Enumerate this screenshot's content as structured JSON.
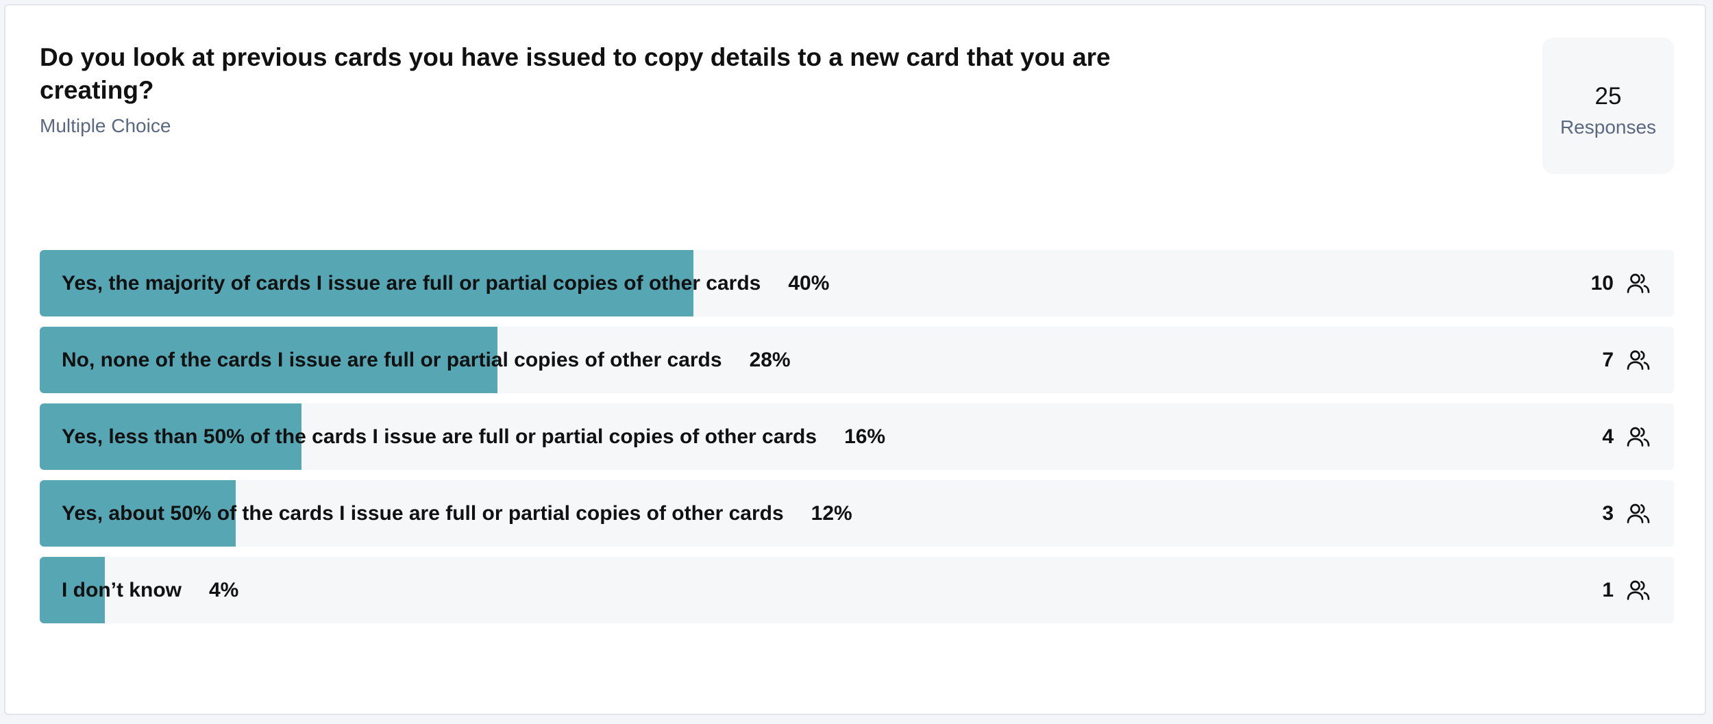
{
  "question": {
    "title": "Do you look at previous cards you have issued to copy details to a new card that you are creating?",
    "type_label": "Multiple Choice"
  },
  "summary": {
    "count": 25,
    "label": "Responses"
  },
  "options": [
    {
      "label": "Yes, the majority of cards I issue are full or partial copies of other cards",
      "percent": 40,
      "percent_label": "40%",
      "count": 10
    },
    {
      "label": "No, none of the cards I issue are full or partial copies of other cards",
      "percent": 28,
      "percent_label": "28%",
      "count": 7
    },
    {
      "label": "Yes, less than 50% of the cards I issue are full or partial copies of other cards",
      "percent": 16,
      "percent_label": "16%",
      "count": 4
    },
    {
      "label": "Yes, about 50% of the cards I issue are full or partial copies of other cards",
      "percent": 12,
      "percent_label": "12%",
      "count": 3
    },
    {
      "label": "I don’t know",
      "percent": 4,
      "percent_label": "4%",
      "count": 1
    }
  ]
}
